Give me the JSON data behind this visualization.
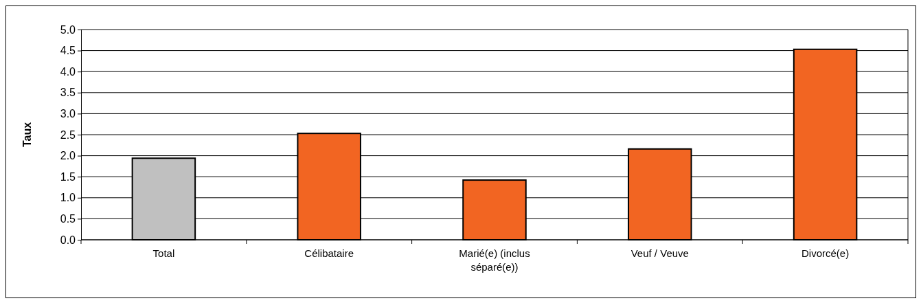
{
  "chart_data": {
    "type": "bar",
    "ylabel": "Taux",
    "categories": [
      "Total",
      "Célibataire",
      "Marié(e) (inclus séparé(e))",
      "Veuf / Veuve",
      "Divorcé(e)"
    ],
    "values": [
      1.94,
      2.53,
      1.42,
      2.16,
      4.53
    ],
    "colors": [
      "#c0c0c0",
      "#f26522",
      "#f26522",
      "#f26522",
      "#f26522"
    ],
    "ylim": [
      0,
      5
    ],
    "yticks": [
      {
        "value": 0,
        "label": "0.0"
      },
      {
        "value": 0.5,
        "label": "0.5"
      },
      {
        "value": 1,
        "label": "1.0"
      },
      {
        "value": 1.5,
        "label": "1.5"
      },
      {
        "value": 2,
        "label": "2.0"
      },
      {
        "value": 2.5,
        "label": "2.5"
      },
      {
        "value": 3,
        "label": "3.0"
      },
      {
        "value": 3.5,
        "label": "3.5"
      },
      {
        "value": 4,
        "label": "4.0"
      },
      {
        "value": 4.5,
        "label": "4.5"
      },
      {
        "value": 5,
        "label": "5.0"
      }
    ],
    "grid": "y"
  }
}
